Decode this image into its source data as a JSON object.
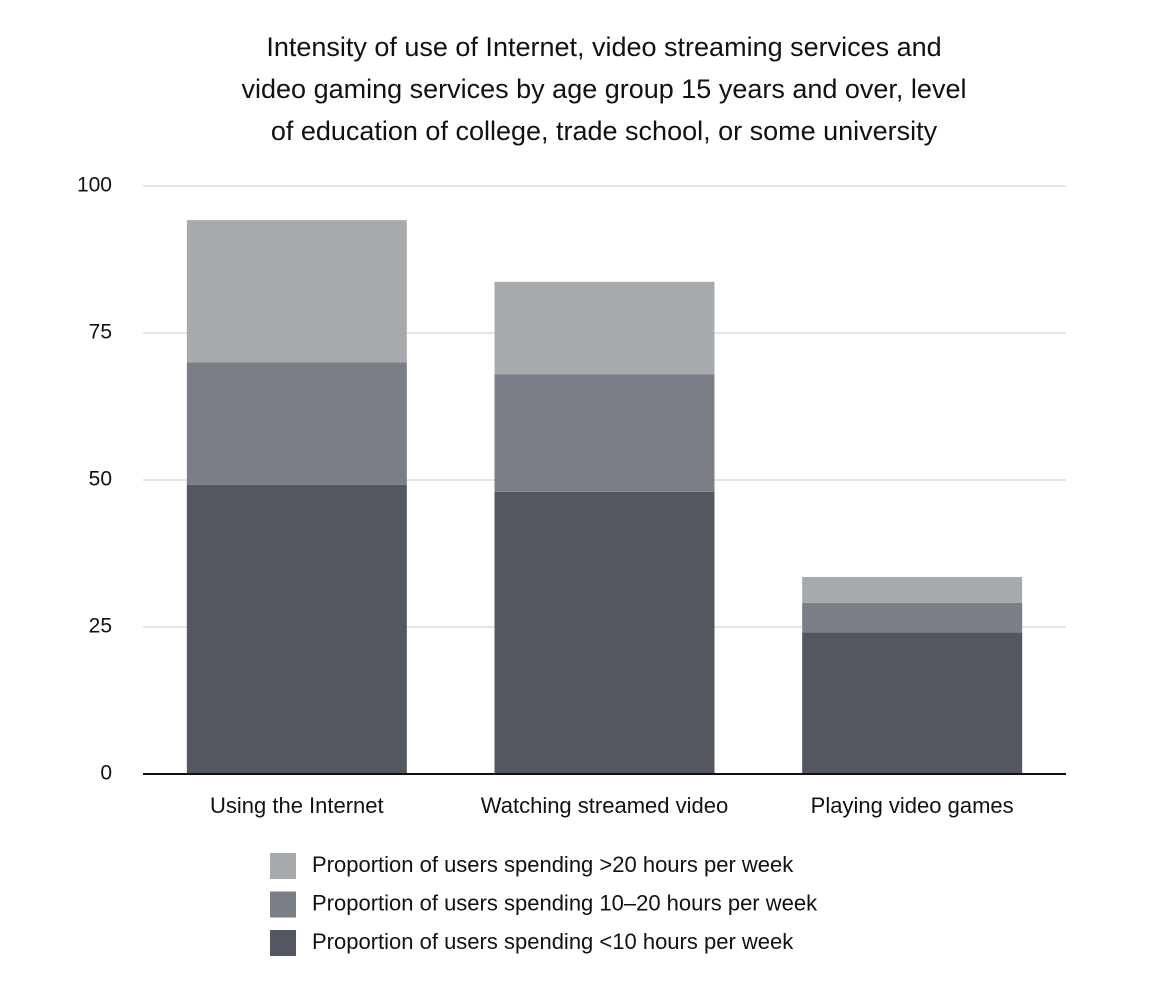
{
  "chart_data": {
    "type": "stacked-bar",
    "title": "Intensity of use of Internet, video streaming services and video gaming services by age group 15 years and over, level of education of college, trade school, or some university",
    "categories": [
      "Using the Internet",
      "Watching streamed video",
      "Playing video games"
    ],
    "series": [
      {
        "name": "Proportion of users spending <10 hours per week",
        "color": "#53575f",
        "values": [
          49.2,
          48.0,
          24.1
        ]
      },
      {
        "name": "Proportion of users spending 10–20 hours per week",
        "color": "#7a7f87",
        "values": [
          20.8,
          20.0,
          5.0
        ]
      },
      {
        "name": "Proportion of users spending >20 hours per week",
        "color": "#a7aaad",
        "values": [
          24.2,
          15.7,
          4.4
        ]
      }
    ],
    "ylim": [
      0,
      100
    ],
    "yticks": [
      0,
      25,
      50,
      75,
      100
    ],
    "grid": true,
    "legend": "bottom"
  }
}
